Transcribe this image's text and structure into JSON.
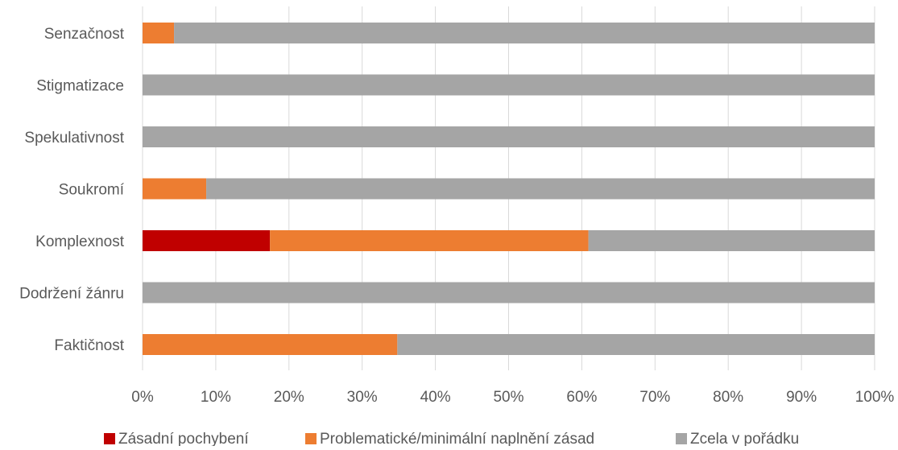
{
  "colors": {
    "fundamental": "#c00000",
    "problematic": "#ed7d31",
    "fine": "#a5a5a5",
    "gridline": "#d9d9d9",
    "text": "#595959"
  },
  "chart_data": {
    "type": "bar",
    "orientation": "horizontal",
    "stacked": "percent",
    "categories": [
      "Senzačnost",
      "Stigmatizace",
      "Spekulativnost",
      "Soukromí",
      "Komplexnost",
      "Dodržení žánru",
      "Faktičnost"
    ],
    "series": [
      {
        "name": "Zásadní pochybení",
        "color": "#c00000",
        "values": [
          0,
          0,
          0,
          0,
          17.4,
          0,
          0
        ]
      },
      {
        "name": "Problematické/minimální naplnění zásad",
        "color": "#ed7d31",
        "values": [
          4.3,
          0,
          0,
          8.7,
          43.5,
          0,
          34.8
        ]
      },
      {
        "name": "Zcela v pořádku",
        "color": "#a5a5a5",
        "values": [
          95.7,
          100,
          100,
          91.3,
          39.1,
          100,
          65.2
        ]
      }
    ],
    "x_ticks": [
      "0%",
      "10%",
      "20%",
      "30%",
      "40%",
      "50%",
      "60%",
      "70%",
      "80%",
      "90%",
      "100%"
    ],
    "xlim": [
      0,
      100
    ],
    "grid": true,
    "legend_position": "bottom"
  }
}
